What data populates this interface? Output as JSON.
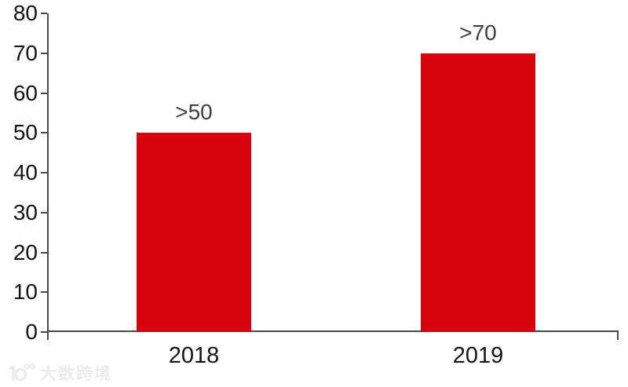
{
  "chart_data": {
    "type": "bar",
    "title": "",
    "xlabel": "",
    "ylabel": "",
    "categories": [
      "2018",
      "2019"
    ],
    "values": [
      50,
      70
    ],
    "data_labels": [
      ">50",
      ">70"
    ],
    "ylim": [
      0,
      80
    ],
    "ytick_step": 10,
    "ytick_labels": [
      "0",
      "10",
      "20",
      "30",
      "40",
      "50",
      "60",
      "70",
      "80"
    ],
    "grid": false,
    "legend_position": "none",
    "colors": {
      "bar": "#d7030f",
      "axis": "#4a4a4a",
      "data_label": "#3f3f3f",
      "tick_label": "#141414"
    }
  },
  "watermark": {
    "icon": "dashu-kuajing-logo",
    "text": "大数跨境",
    "color": "#ebebeb"
  }
}
